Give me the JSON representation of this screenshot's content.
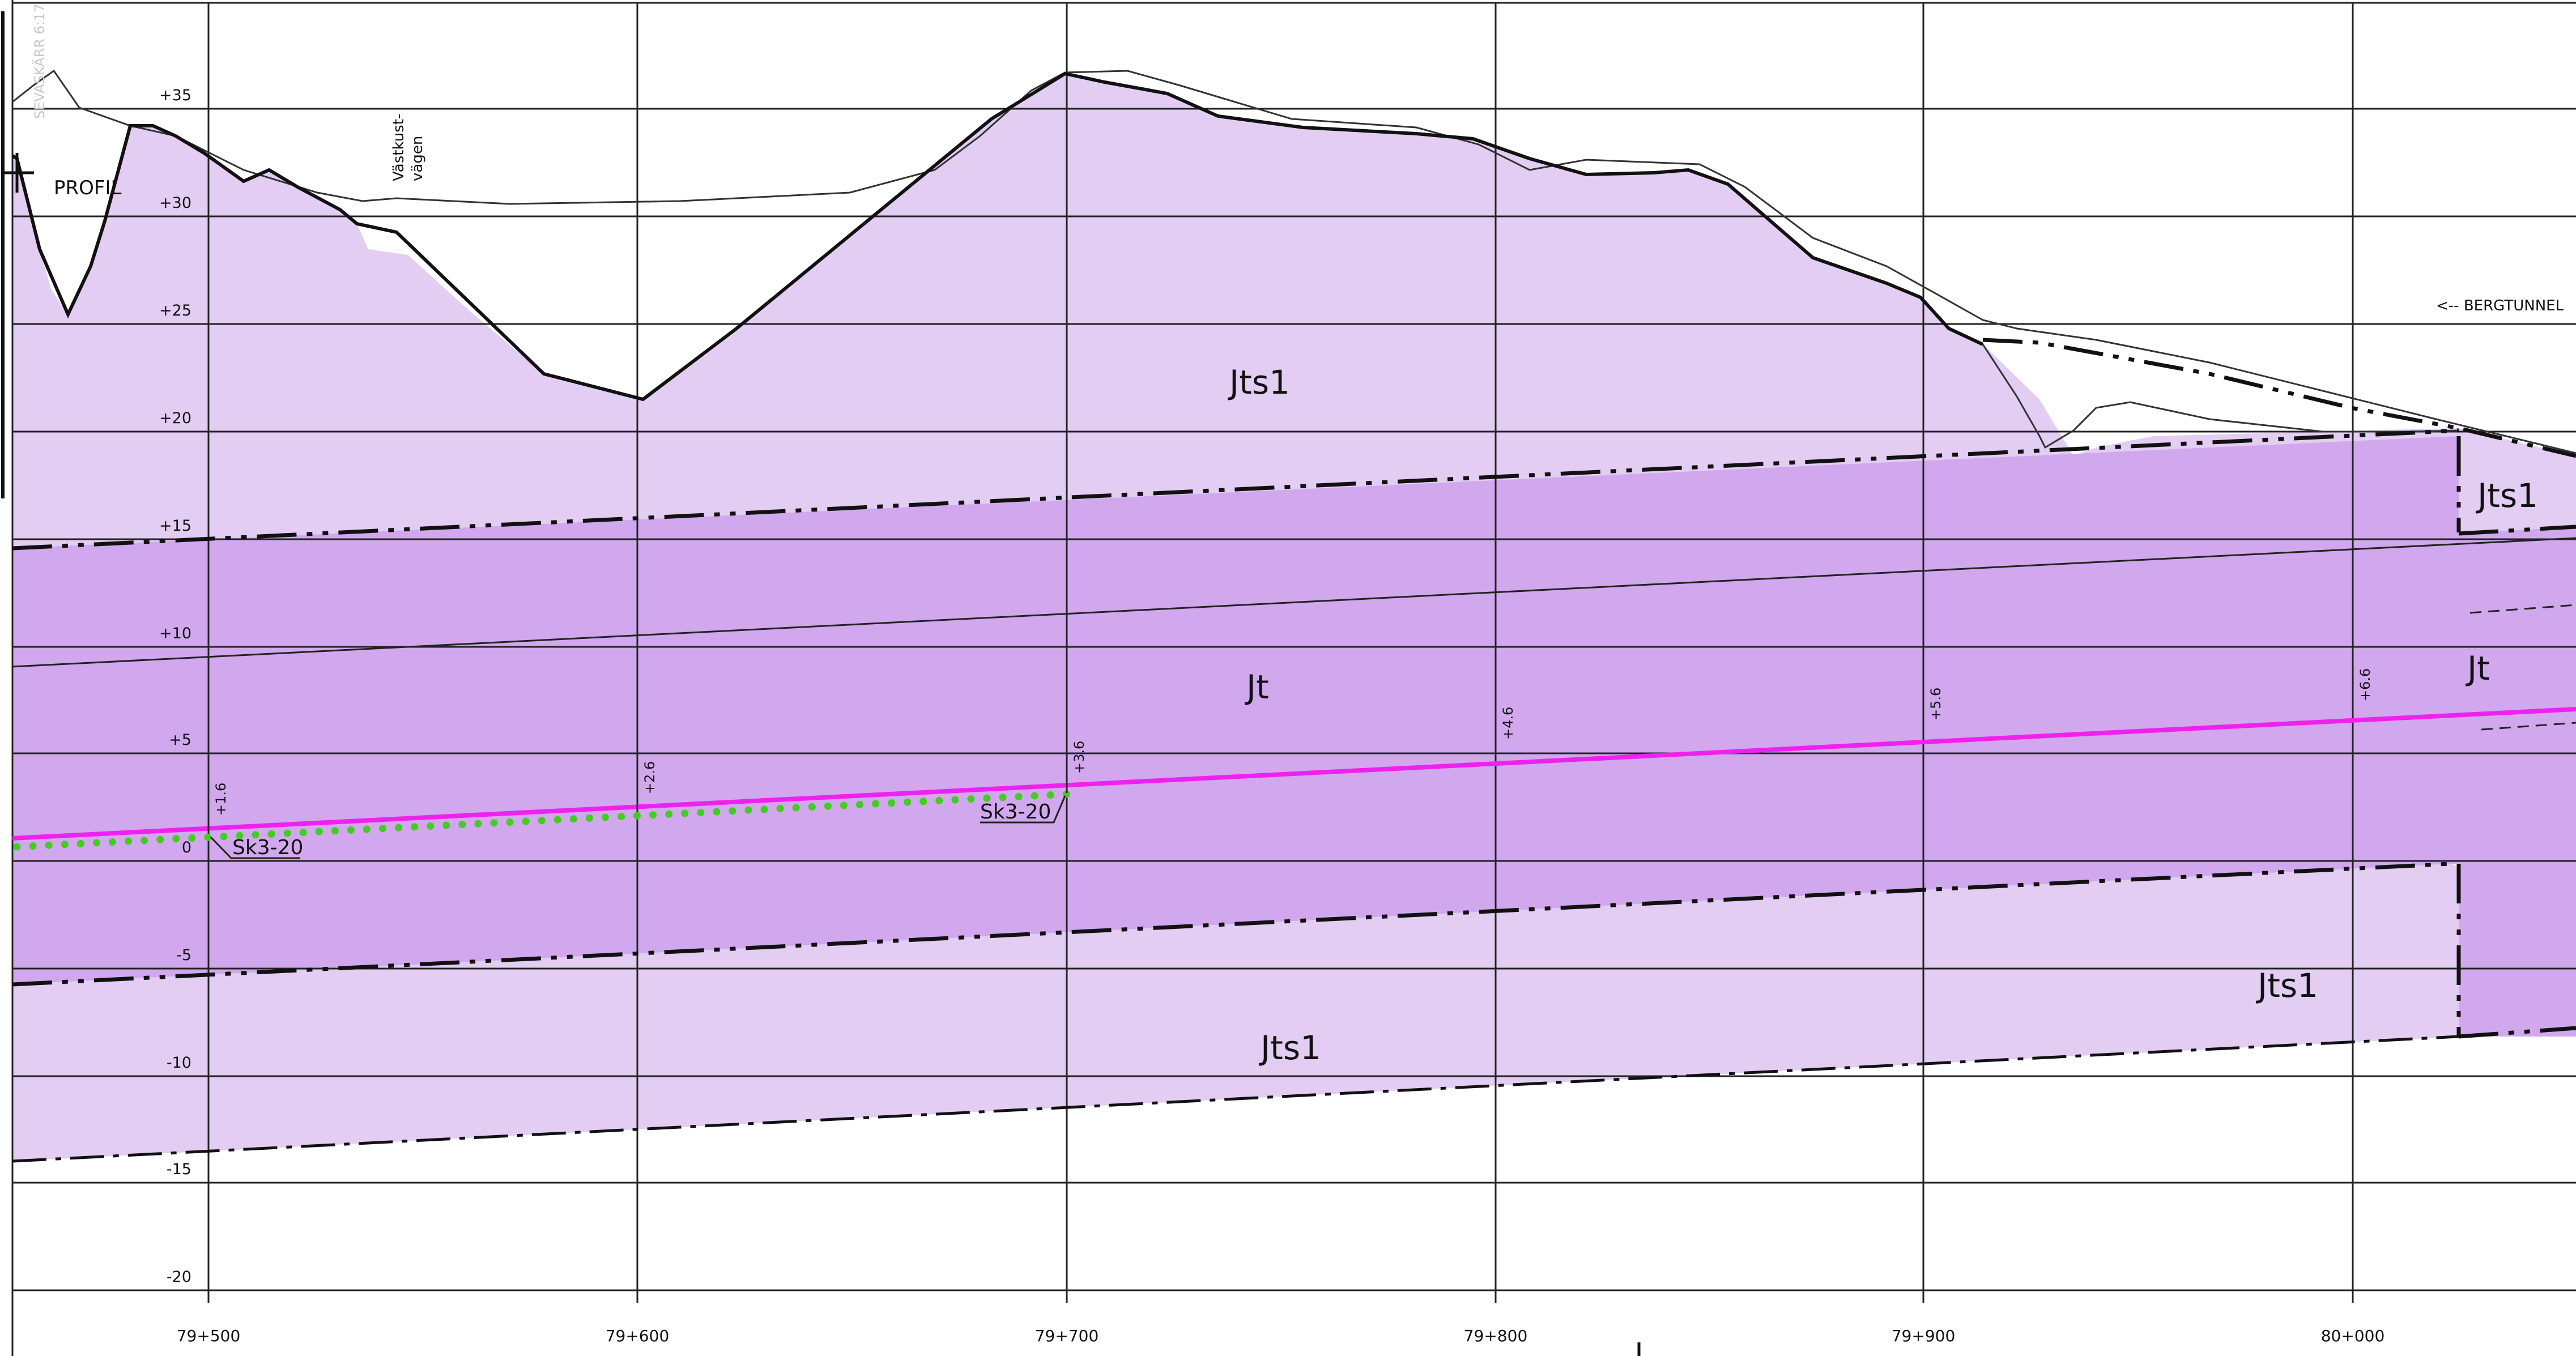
{
  "drawing": {
    "profile_label": "PROFIL",
    "road_label_line1": "Västkust-",
    "road_label_line2": "vägen",
    "bergtunnel_label": "<-- BERGTUNNEL",
    "margin_note": "SEVASKÄRR 6:17"
  },
  "axes": {
    "elevation_labels": [
      "+35",
      "+30",
      "+25",
      "+20",
      "+15",
      "+10",
      "+5",
      "0",
      "-5",
      "-10",
      "-15",
      "-20"
    ],
    "station_labels": [
      "79+500",
      "79+600",
      "79+700",
      "79+800",
      "79+900",
      "80+000"
    ]
  },
  "zones": {
    "jts1_upper": "Jts1",
    "jt_main": "Jt",
    "jts1_lower": "Jts1",
    "jts1_right_upper": "Jts1",
    "jt_right": "Jt",
    "jts1_right_lower": "Jts1"
  },
  "profile_levels": [
    "+1.6",
    "+2.6",
    "+3.6",
    "+4.6",
    "+5.6",
    "+6.6"
  ],
  "markers": {
    "sk_left": "Sk3-20",
    "sk_right": "Sk3-20"
  },
  "colors": {
    "zone_light": "#e3cdf3",
    "zone_medium": "#d1a8ee",
    "profile_line": "#ee22ee",
    "dotted_line": "#44cc22",
    "grid": "#222222"
  }
}
